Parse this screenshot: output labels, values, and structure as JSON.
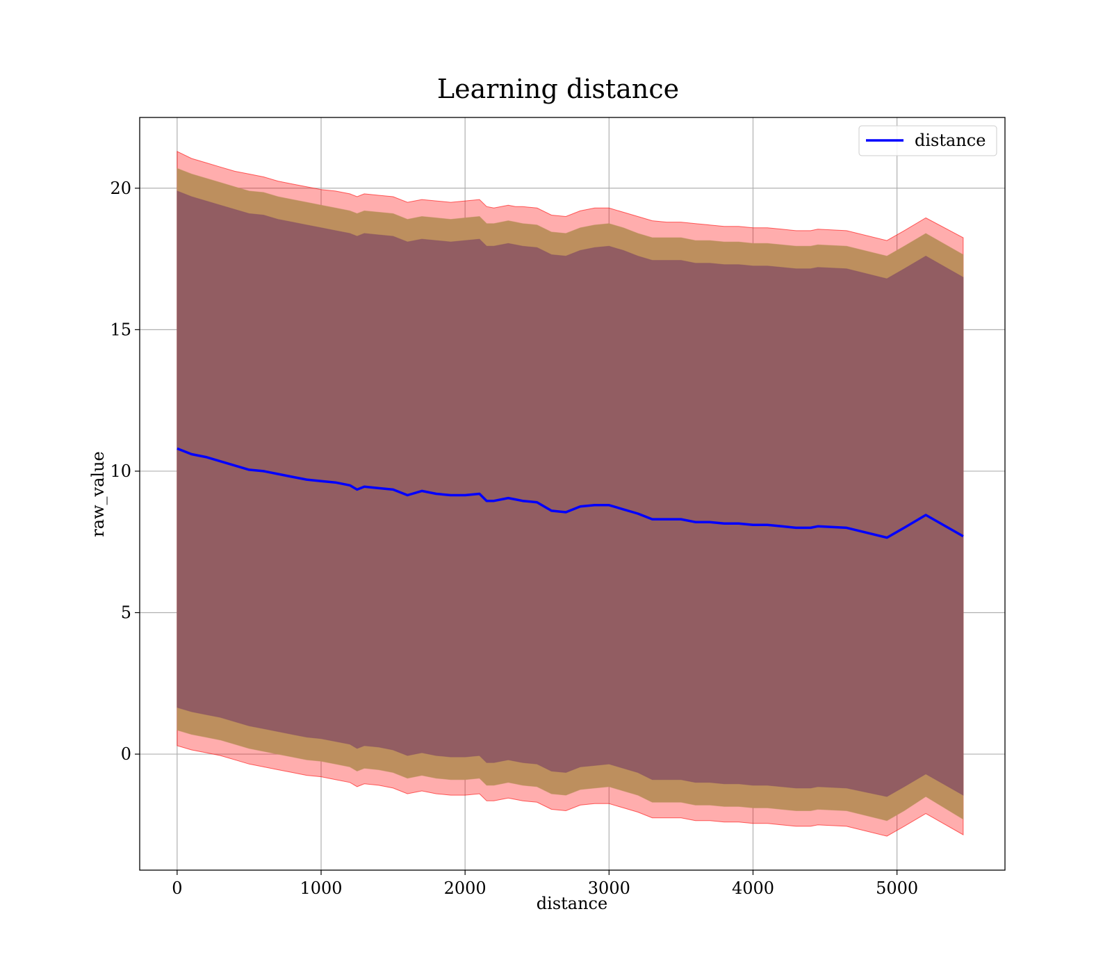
{
  "chart_data": {
    "type": "area",
    "title": "Learning distance",
    "xlabel": "distance",
    "ylabel": "raw_value",
    "xlim": [
      -260,
      5750
    ],
    "ylim": [
      -4.1,
      22.5
    ],
    "xticks": [
      0,
      1000,
      2000,
      3000,
      4000,
      5000
    ],
    "yticks": [
      0,
      5,
      10,
      15,
      20
    ],
    "grid": true,
    "legend_position": "top-right",
    "colors": {
      "line": "#0000ff",
      "band_outer": "#ff0000",
      "band_middle": "#bd8f5e",
      "band_inner": "#8b5563"
    },
    "x": [
      0,
      100,
      200,
      300,
      400,
      500,
      600,
      700,
      800,
      900,
      1000,
      1100,
      1200,
      1250,
      1300,
      1400,
      1500,
      1600,
      1700,
      1800,
      1900,
      2000,
      2100,
      2150,
      2200,
      2300,
      2350,
      2400,
      2500,
      2600,
      2700,
      2800,
      2900,
      3000,
      3100,
      3200,
      3300,
      3400,
      3500,
      3600,
      3700,
      3800,
      3900,
      4000,
      4100,
      4200,
      4300,
      4400,
      4450,
      4650,
      4930,
      5050,
      5200,
      5460
    ],
    "series": [
      {
        "name": "distance",
        "values": [
          10.8,
          10.6,
          10.5,
          10.35,
          10.2,
          10.05,
          10.0,
          9.9,
          9.8,
          9.7,
          9.65,
          9.6,
          9.5,
          9.35,
          9.45,
          9.4,
          9.35,
          9.15,
          9.3,
          9.2,
          9.15,
          9.15,
          9.2,
          8.95,
          8.95,
          9.05,
          9.0,
          8.95,
          8.9,
          8.6,
          8.55,
          8.75,
          8.8,
          8.8,
          8.65,
          8.5,
          8.3,
          8.3,
          8.3,
          8.2,
          8.2,
          8.15,
          8.15,
          8.1,
          8.1,
          8.05,
          8.0,
          8.0,
          8.05,
          8.0,
          7.65,
          8.0,
          8.45,
          7.7
        ]
      }
    ],
    "bands": [
      {
        "level": "outer",
        "upper": [
          21.3,
          21.05,
          20.9,
          20.75,
          20.6,
          20.5,
          20.4,
          20.25,
          20.15,
          20.05,
          19.95,
          19.9,
          19.8,
          19.7,
          19.8,
          19.75,
          19.7,
          19.5,
          19.6,
          19.55,
          19.5,
          19.55,
          19.6,
          19.35,
          19.3,
          19.4,
          19.35,
          19.35,
          19.3,
          19.05,
          19.0,
          19.2,
          19.3,
          19.3,
          19.15,
          19.0,
          18.85,
          18.8,
          18.8,
          18.75,
          18.7,
          18.65,
          18.65,
          18.6,
          18.6,
          18.55,
          18.5,
          18.5,
          18.55,
          18.5,
          18.15,
          18.5,
          18.95,
          18.25
        ],
        "lower": [
          0.3,
          0.15,
          0.05,
          -0.05,
          -0.2,
          -0.35,
          -0.45,
          -0.55,
          -0.65,
          -0.75,
          -0.8,
          -0.9,
          -1.0,
          -1.15,
          -1.05,
          -1.1,
          -1.2,
          -1.4,
          -1.3,
          -1.4,
          -1.45,
          -1.45,
          -1.4,
          -1.65,
          -1.65,
          -1.55,
          -1.6,
          -1.65,
          -1.7,
          -1.95,
          -2.0,
          -1.8,
          -1.75,
          -1.75,
          -1.9,
          -2.05,
          -2.25,
          -2.25,
          -2.25,
          -2.35,
          -2.35,
          -2.4,
          -2.4,
          -2.45,
          -2.45,
          -2.5,
          -2.55,
          -2.55,
          -2.5,
          -2.55,
          -2.9,
          -2.55,
          -2.1,
          -2.85
        ]
      },
      {
        "level": "middle",
        "upper": [
          20.7,
          20.5,
          20.35,
          20.2,
          20.05,
          19.9,
          19.85,
          19.7,
          19.6,
          19.5,
          19.4,
          19.3,
          19.2,
          19.1,
          19.2,
          19.15,
          19.1,
          18.9,
          19.0,
          18.95,
          18.9,
          18.95,
          19.0,
          18.75,
          18.75,
          18.85,
          18.8,
          18.75,
          18.7,
          18.45,
          18.4,
          18.6,
          18.7,
          18.75,
          18.6,
          18.4,
          18.25,
          18.25,
          18.25,
          18.15,
          18.15,
          18.1,
          18.1,
          18.05,
          18.05,
          18.0,
          17.95,
          17.95,
          18.0,
          17.95,
          17.6,
          17.95,
          18.4,
          17.65
        ],
        "lower": [
          0.85,
          0.7,
          0.6,
          0.5,
          0.35,
          0.2,
          0.1,
          0.0,
          -0.1,
          -0.2,
          -0.25,
          -0.35,
          -0.45,
          -0.6,
          -0.5,
          -0.55,
          -0.65,
          -0.85,
          -0.75,
          -0.85,
          -0.9,
          -0.9,
          -0.85,
          -1.1,
          -1.1,
          -1.0,
          -1.05,
          -1.1,
          -1.15,
          -1.4,
          -1.45,
          -1.25,
          -1.2,
          -1.15,
          -1.3,
          -1.45,
          -1.7,
          -1.7,
          -1.7,
          -1.8,
          -1.8,
          -1.85,
          -1.85,
          -1.9,
          -1.9,
          -1.95,
          -2.0,
          -2.0,
          -1.95,
          -2.0,
          -2.35,
          -2.0,
          -1.5,
          -2.3
        ]
      },
      {
        "level": "inner",
        "upper": [
          19.9,
          19.7,
          19.55,
          19.4,
          19.25,
          19.1,
          19.05,
          18.9,
          18.8,
          18.7,
          18.6,
          18.5,
          18.4,
          18.3,
          18.4,
          18.35,
          18.3,
          18.1,
          18.2,
          18.15,
          18.1,
          18.15,
          18.2,
          17.95,
          17.95,
          18.05,
          18.0,
          17.95,
          17.9,
          17.65,
          17.6,
          17.8,
          17.9,
          17.95,
          17.8,
          17.6,
          17.45,
          17.45,
          17.45,
          17.35,
          17.35,
          17.3,
          17.3,
          17.25,
          17.25,
          17.2,
          17.15,
          17.15,
          17.2,
          17.15,
          16.8,
          17.15,
          17.6,
          16.85
        ],
        "lower": [
          1.65,
          1.5,
          1.4,
          1.3,
          1.15,
          1.0,
          0.9,
          0.8,
          0.7,
          0.6,
          0.55,
          0.45,
          0.35,
          0.2,
          0.3,
          0.25,
          0.15,
          -0.05,
          0.05,
          -0.05,
          -0.1,
          -0.1,
          -0.05,
          -0.3,
          -0.3,
          -0.2,
          -0.25,
          -0.3,
          -0.35,
          -0.6,
          -0.65,
          -0.45,
          -0.4,
          -0.35,
          -0.5,
          -0.65,
          -0.9,
          -0.9,
          -0.9,
          -1.0,
          -1.0,
          -1.05,
          -1.05,
          -1.1,
          -1.1,
          -1.15,
          -1.2,
          -1.2,
          -1.15,
          -1.2,
          -1.5,
          -1.15,
          -0.7,
          -1.45
        ]
      }
    ]
  }
}
